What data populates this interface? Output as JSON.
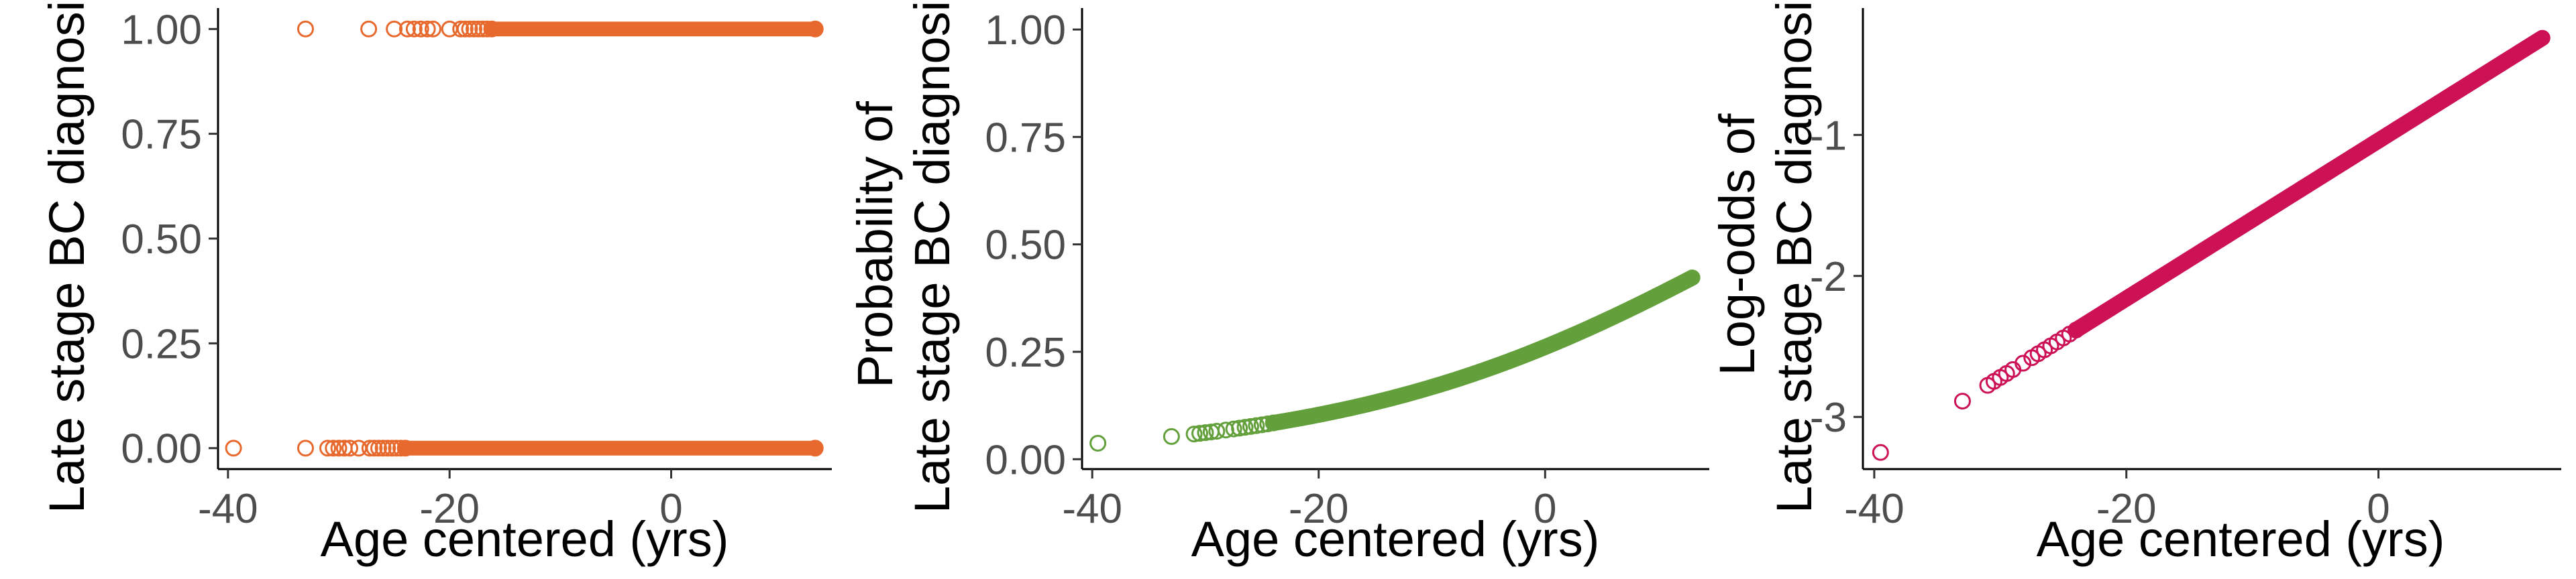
{
  "chart_data": [
    {
      "type": "scatter",
      "panel": "left",
      "color": "#E8692D",
      "xlabel": "Age centered (yrs)",
      "ylabel": "Late stage BC diagnosis",
      "xlim": [
        -40.9,
        14.5
      ],
      "ylim": [
        -0.05,
        1.05
      ],
      "xticks": [
        -40,
        -20,
        0
      ],
      "xtick_labels": [
        "-40",
        "-20",
        "0"
      ],
      "yticks": [
        0,
        0.25,
        0.5,
        0.75,
        1
      ],
      "ytick_labels": [
        "0.00",
        "0.25",
        "0.50",
        "0.75",
        "1.00"
      ],
      "grid": false,
      "legend": "none",
      "x_range_points": [
        -33,
        13
      ],
      "sparse_x_y1": [
        -33,
        -27.3,
        -25,
        -23.8,
        -23.2,
        -22.6,
        -22,
        -21.5,
        -20,
        -19,
        -18.6,
        -18.2,
        -17.8,
        -17.4,
        -17,
        -16.6,
        -16.2
      ],
      "sparse_x_y0": [
        -39.5,
        -33,
        -31,
        -30.5,
        -30,
        -29.5,
        -29,
        -28.2,
        -27.2,
        -26.8,
        -26.4,
        -26,
        -25.6,
        -25.2,
        -24.8,
        -24.4,
        -24
      ]
    },
    {
      "type": "scatter",
      "panel": "middle",
      "color": "#63A03C",
      "xlabel": "Age centered (yrs)",
      "ylabel_lines": [
        "Probability of",
        "Late stage BC diagnosis"
      ],
      "xlim": [
        -40.9,
        14.5
      ],
      "ylim": [
        -0.023,
        1.05
      ],
      "xticks": [
        -40,
        -20,
        0
      ],
      "xtick_labels": [
        "-40",
        "-20",
        "0"
      ],
      "yticks": [
        0,
        0.25,
        0.5,
        0.75,
        1
      ],
      "ytick_labels": [
        "0.00",
        "0.25",
        "0.50",
        "0.75",
        "1.00"
      ],
      "grid": false,
      "legend": "none",
      "model": {
        "intercept": -1.04,
        "slope": 0.056
      },
      "x_points": [
        -39.5,
        -33,
        -31,
        -30.5,
        -30,
        -29.5,
        -29,
        -28.2,
        -27.5,
        -27,
        -26.5,
        -26,
        -25.5,
        -25,
        -24.5,
        -24
      ]
    },
    {
      "type": "scatter",
      "panel": "right",
      "color": "#CD1155",
      "xlabel": "Age centered (yrs)",
      "ylabel_lines": [
        "Log-odds of",
        "Late stage BC diagnosis"
      ],
      "xlim": [
        -40.9,
        14.5
      ],
      "ylim": [
        -3.37,
        -0.1
      ],
      "xticks": [
        -40,
        -20,
        0
      ],
      "xtick_labels": [
        "-40",
        "-20",
        "0"
      ],
      "yticks": [
        -3,
        -2,
        -1
      ],
      "ytick_labels": [
        "-3",
        "-2",
        "-1"
      ],
      "grid": false,
      "legend": "none",
      "model": {
        "intercept": -1.04,
        "slope": 0.056
      },
      "x_points": [
        -39.5,
        -33,
        -31,
        -30.5,
        -30,
        -29.5,
        -29,
        -28.2,
        -27.5,
        -27,
        -26.5,
        -26,
        -25.5,
        -25,
        -24.5,
        -24
      ]
    }
  ]
}
